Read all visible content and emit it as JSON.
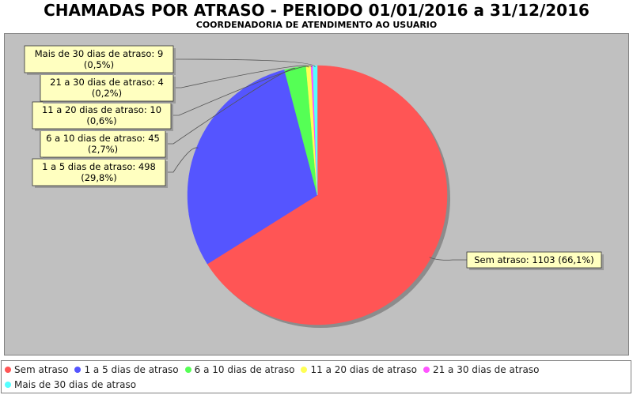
{
  "chart_data": {
    "type": "pie",
    "title": "CHAMADAS POR ATRASO - PERIODO 01/01/2016 a 31/12/2016",
    "subtitle": "COORDENADORIA DE ATENDIMENTO AO USUARIO",
    "legend_placement": "bottom",
    "slices": [
      {
        "name": "Sem atraso",
        "value": 1103,
        "label": "Sem atraso: 1103 (66,1%)",
        "color": "#ff5555"
      },
      {
        "name": "1 a 5 dias de atraso",
        "value": 498,
        "label": "1 a 5 dias de atraso: 498\n(29,8%)",
        "color": "#5555ff"
      },
      {
        "name": "6 a 10 dias de atraso",
        "value": 45,
        "label": "6 a 10 dias de atraso: 45\n(2,7%)",
        "color": "#55ff55"
      },
      {
        "name": "11 a 20 dias de atraso",
        "value": 10,
        "label": "11 a 20 dias de atraso: 10\n(0,6%)",
        "color": "#ffff55"
      },
      {
        "name": "21 a 30 dias de atraso",
        "value": 4,
        "label": "21 a 30 dias de atraso: 4\n(0,2%)",
        "color": "#ff55ff"
      },
      {
        "name": "Mais de 30 dias de atraso",
        "value": 9,
        "label": "Mais de 30 dias de atraso: 9\n(0,5%)",
        "color": "#55ffff"
      }
    ]
  }
}
